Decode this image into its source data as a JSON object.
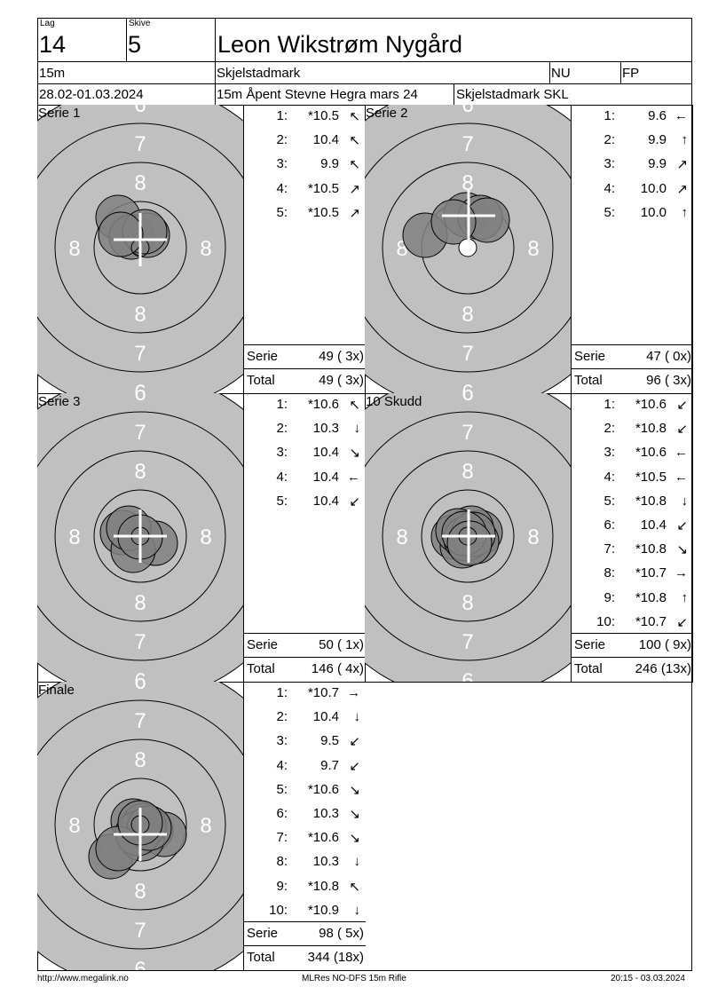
{
  "header": {
    "lag_label": "Lag",
    "lag": "14",
    "skive_label": "Skive",
    "skive": "5",
    "name": "Leon Wikstrøm Nygård",
    "distance": "15m",
    "club": "Skjelstadmark",
    "class": "NU",
    "category": "FP",
    "dates": "28.02-01.03.2024",
    "event": "15m Åpent Stevne Hegra mars 24",
    "team": "Skjelstadmark SKL"
  },
  "target_labels": {
    "r6": "6",
    "r7": "7",
    "r8": "8"
  },
  "colors": {
    "target": "#c0c0c0",
    "shot": "#808080",
    "line": "#000000",
    "cross": "#ffffff"
  },
  "panels": [
    {
      "title": "Serie 1",
      "shots": [
        {
          "n": "1:",
          "v": "*10.5",
          "a": "↖"
        },
        {
          "n": "2:",
          "v": "10.4",
          "a": "↖"
        },
        {
          "n": "3:",
          "v": "9.9",
          "a": "↖"
        },
        {
          "n": "4:",
          "v": "*10.5",
          "a": "↗"
        },
        {
          "n": "5:",
          "v": "*10.5",
          "a": "↗"
        }
      ],
      "serie_label": "Serie",
      "serie": "49 ( 3x)",
      "total_label": "Total",
      "total": "49 ( 3x)"
    },
    {
      "title": "Serie 2",
      "shots": [
        {
          "n": "1:",
          "v": "9.6",
          "a": "←"
        },
        {
          "n": "2:",
          "v": "9.9",
          "a": "↑"
        },
        {
          "n": "3:",
          "v": "9.9",
          "a": "↗"
        },
        {
          "n": "4:",
          "v": "10.0",
          "a": "↗"
        },
        {
          "n": "5:",
          "v": "10.0",
          "a": "↑"
        }
      ],
      "serie_label": "Serie",
      "serie": "47 ( 0x)",
      "total_label": "Total",
      "total": "96 ( 3x)"
    },
    {
      "title": "Serie 3",
      "shots": [
        {
          "n": "1:",
          "v": "*10.6",
          "a": "↖"
        },
        {
          "n": "2:",
          "v": "10.3",
          "a": "↓"
        },
        {
          "n": "3:",
          "v": "10.4",
          "a": "↘"
        },
        {
          "n": "4:",
          "v": "10.4",
          "a": "←"
        },
        {
          "n": "5:",
          "v": "10.4",
          "a": "↙"
        }
      ],
      "serie_label": "Serie",
      "serie": "50 ( 1x)",
      "total_label": "Total",
      "total": "146 ( 4x)"
    },
    {
      "title": "10 Skudd",
      "shots": [
        {
          "n": "1:",
          "v": "*10.6",
          "a": "↙"
        },
        {
          "n": "2:",
          "v": "*10.8",
          "a": "↙"
        },
        {
          "n": "3:",
          "v": "*10.6",
          "a": "←"
        },
        {
          "n": "4:",
          "v": "*10.5",
          "a": "←"
        },
        {
          "n": "5:",
          "v": "*10.8",
          "a": "↓"
        },
        {
          "n": "6:",
          "v": "10.4",
          "a": "↙"
        },
        {
          "n": "7:",
          "v": "*10.8",
          "a": "↘"
        },
        {
          "n": "8:",
          "v": "*10.7",
          "a": "→"
        },
        {
          "n": "9:",
          "v": "*10.8",
          "a": "↑"
        },
        {
          "n": "10:",
          "v": "*10.7",
          "a": "↙"
        }
      ],
      "serie_label": "Serie",
      "serie": "100 ( 9x)",
      "total_label": "Total",
      "total": "246 (13x)"
    },
    {
      "title": "Finale",
      "shots": [
        {
          "n": "1:",
          "v": "*10.7",
          "a": "→"
        },
        {
          "n": "2:",
          "v": "10.4",
          "a": "↓"
        },
        {
          "n": "3:",
          "v": "9.5",
          "a": "↙"
        },
        {
          "n": "4:",
          "v": "9.7",
          "a": "↙"
        },
        {
          "n": "5:",
          "v": "*10.6",
          "a": "↘"
        },
        {
          "n": "6:",
          "v": "10.3",
          "a": "↘"
        },
        {
          "n": "7:",
          "v": "*10.6",
          "a": "↘"
        },
        {
          "n": "8:",
          "v": "10.3",
          "a": "↓"
        },
        {
          "n": "9:",
          "v": "*10.8",
          "a": "↖"
        },
        {
          "n": "10:",
          "v": "*10.9",
          "a": "↓"
        }
      ],
      "serie_label": "Serie",
      "serie": "98 ( 5x)",
      "total_label": "Total",
      "total": "344 (18x)"
    }
  ],
  "footer": {
    "left": "http://www.megalink.no",
    "center": "MLRes NO-DFS 15m Rifle",
    "right": "20:15 - 03.03.2024"
  }
}
